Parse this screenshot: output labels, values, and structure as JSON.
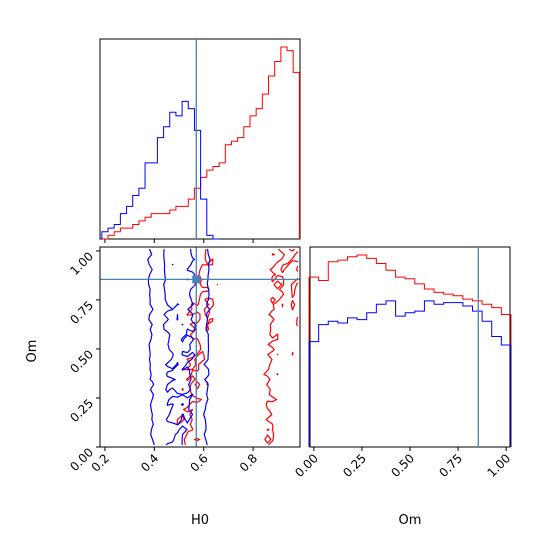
{
  "chart_data": {
    "type": "corner",
    "parameters": [
      "H0",
      "Om"
    ],
    "truth": {
      "H0": 0.57,
      "Om": 0.855
    },
    "colors": {
      "red": "#ff0000",
      "blue": "#0000ff",
      "truth": "#4682b4"
    },
    "panels": [
      {
        "id": "hist_H0",
        "type": "step-histogram",
        "xlim": [
          0.18,
          0.99
        ],
        "bin_width": 0.025,
        "series": [
          {
            "color": "red",
            "x": [
              0.2,
              0.225,
              0.25,
              0.275,
              0.3,
              0.325,
              0.35,
              0.375,
              0.4,
              0.425,
              0.45,
              0.475,
              0.5,
              0.525,
              0.55,
              0.575,
              0.6,
              0.625,
              0.65,
              0.675,
              0.7,
              0.725,
              0.75,
              0.775,
              0.8,
              0.825,
              0.85,
              0.875,
              0.9,
              0.925,
              0.95,
              0.975
            ],
            "values": [
              0,
              1,
              2,
              3,
              3,
              4,
              5,
              6,
              7,
              7,
              7,
              8,
              9,
              9,
              11,
              14,
              17,
              19,
              20,
              21,
              26,
              27,
              28,
              31,
              34,
              36,
              40,
              45,
              49,
              53,
              52,
              46
            ]
          },
          {
            "color": "blue",
            "x": [
              0.2,
              0.225,
              0.25,
              0.275,
              0.3,
              0.325,
              0.35,
              0.375,
              0.4,
              0.425,
              0.45,
              0.475,
              0.5,
              0.525,
              0.55,
              0.575,
              0.6,
              0.625,
              0.65
            ],
            "values": [
              2,
              3,
              4,
              7,
              9,
              12,
              14,
              21,
              21,
              28,
              31,
              35,
              34,
              38,
              36,
              30,
              11,
              1,
              0
            ]
          }
        ]
      },
      {
        "id": "hist_Om",
        "type": "step-histogram",
        "xlim": [
          -0.02,
          1.02
        ],
        "xlabel": "Om",
        "xticks": [
          0.0,
          0.25,
          0.5,
          0.75,
          1.0
        ],
        "tick_labels": [
          "0.00",
          "0.25",
          "0.50",
          "0.75",
          "1.00"
        ],
        "bin_width": 0.05,
        "series": [
          {
            "color": "red",
            "x": [
              0.0,
              0.05,
              0.1,
              0.15,
              0.2,
              0.25,
              0.3,
              0.35,
              0.4,
              0.45,
              0.5,
              0.55,
              0.6,
              0.65,
              0.7,
              0.75,
              0.8,
              0.85,
              0.9,
              0.95,
              1.0
            ],
            "values": [
              1.0,
              0.98,
              1.09,
              1.1,
              1.12,
              1.13,
              1.11,
              1.08,
              1.04,
              1.0,
              0.99,
              0.96,
              0.93,
              0.91,
              0.9,
              0.89,
              0.87,
              0.86,
              0.84,
              0.82,
              0.78
            ]
          },
          {
            "color": "blue",
            "x": [
              0.0,
              0.05,
              0.1,
              0.15,
              0.2,
              0.25,
              0.3,
              0.35,
              0.4,
              0.45,
              0.5,
              0.55,
              0.6,
              0.65,
              0.7,
              0.75,
              0.8,
              0.85,
              0.9,
              0.95,
              1.0
            ],
            "values": [
              0.62,
              0.72,
              0.74,
              0.73,
              0.76,
              0.75,
              0.79,
              0.84,
              0.86,
              0.77,
              0.79,
              0.8,
              0.86,
              0.84,
              0.85,
              0.85,
              0.83,
              0.8,
              0.74,
              0.65,
              0.6
            ]
          }
        ]
      },
      {
        "id": "contour_H0_Om",
        "type": "contour",
        "xlim": [
          0.18,
          0.99
        ],
        "ylim": [
          0.0,
          1.02
        ],
        "xlabel": "H0",
        "ylabel": "Om",
        "xticks": [
          0.2,
          0.4,
          0.6,
          0.8
        ],
        "xtick_labels": [
          "0.2",
          "0.4",
          "0.6",
          "0.8"
        ],
        "yticks": [
          0.0,
          0.25,
          0.5,
          0.75,
          1.0
        ],
        "ytick_labels": [
          "0.00",
          "0.25",
          "0.50",
          "0.75",
          "1.00"
        ]
      }
    ]
  }
}
